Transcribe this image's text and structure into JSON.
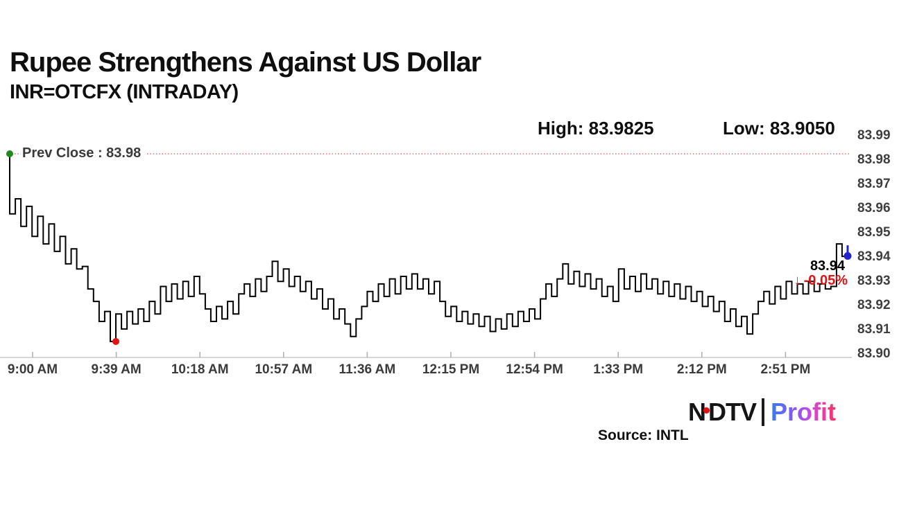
{
  "header": {
    "title": "Rupee Strengthens Against US Dollar",
    "subtitle": "INR=OTCFX (INTRADAY)",
    "high_label": "High: 83.9825",
    "low_label": "Low: 83.9050"
  },
  "annotations": {
    "prev_close_label": "Prev Close : 83.98",
    "last_price_label": "83.94",
    "change_arrow": "↓",
    "change_label": "-0.05%"
  },
  "footer": {
    "source": "Source: INTL",
    "logo_ndtv_n": "N",
    "logo_ndtv_dtv": "DTV",
    "logo_profit": "Profit"
  },
  "colors": {
    "line": "#000000",
    "prev_close_dotted": "#d97070",
    "open_marker_green": "#1e8a1e",
    "low_marker_red": "#e31212",
    "last_marker_blue": "#2424cf",
    "change_red": "#df1414",
    "axis_line": "#c9c9c9",
    "tick": "#adadad",
    "axis_text": "#3a3a3a"
  },
  "chart_data": {
    "type": "line",
    "title": "Rupee Strengthens Against US Dollar",
    "subtitle": "INR=OTCFX (INTRADAY)",
    "prev_close": 83.98,
    "high": 83.9825,
    "low": 83.905,
    "last": 83.94,
    "change_pct": -0.05,
    "ylim": [
      83.9,
      83.99
    ],
    "grid": false,
    "y_tick_labels": [
      "83.99",
      "83.98",
      "83.97",
      "83.96",
      "83.95",
      "83.94",
      "83.93",
      "83.92",
      "83.91",
      "83.90"
    ],
    "x_tick_labels": [
      "9:00 AM",
      "9:39 AM",
      "10:18 AM",
      "10:57 AM",
      "11:36 AM",
      "12:15 PM",
      "12:54 PM",
      "1:33 PM",
      "2:12 PM",
      "2:51 PM"
    ],
    "series": [
      {
        "name": "INR=OTCFX intraday price",
        "values": [
          83.98,
          83.956,
          83.962,
          83.951,
          83.959,
          83.947,
          83.955,
          83.944,
          83.952,
          83.941,
          83.947,
          83.936,
          83.942,
          83.934,
          83.935,
          83.926,
          83.921,
          83.913,
          83.917,
          83.905,
          83.916,
          83.91,
          83.917,
          83.912,
          83.918,
          83.913,
          83.921,
          83.916,
          83.927,
          83.921,
          83.928,
          83.922,
          83.929,
          83.923,
          83.931,
          83.924,
          83.918,
          83.913,
          83.919,
          83.914,
          83.921,
          83.916,
          83.924,
          83.928,
          83.923,
          83.93,
          83.925,
          83.931,
          83.937,
          83.929,
          83.934,
          83.927,
          83.931,
          83.925,
          83.929,
          83.922,
          83.926,
          83.918,
          83.922,
          83.914,
          83.918,
          83.912,
          83.907,
          83.914,
          83.919,
          83.925,
          83.921,
          83.928,
          83.923,
          83.93,
          83.924,
          83.931,
          83.926,
          83.932,
          83.926,
          83.93,
          83.924,
          83.929,
          83.921,
          83.915,
          83.919,
          83.913,
          83.917,
          83.912,
          83.916,
          83.911,
          83.915,
          83.909,
          83.914,
          83.91,
          83.916,
          83.911,
          83.917,
          83.913,
          83.918,
          83.914,
          83.922,
          83.928,
          83.923,
          83.93,
          83.936,
          83.928,
          83.933,
          83.927,
          83.932,
          83.926,
          83.93,
          83.923,
          83.927,
          83.921,
          83.934,
          83.926,
          83.931,
          83.925,
          83.932,
          83.926,
          83.93,
          83.924,
          83.929,
          83.923,
          83.928,
          83.922,
          83.927,
          83.921,
          83.925,
          83.919,
          83.923,
          83.917,
          83.921,
          83.913,
          83.918,
          83.911,
          83.915,
          83.908,
          83.916,
          83.921,
          83.925,
          83.92,
          83.927,
          83.922,
          83.929,
          83.924,
          83.928,
          83.924,
          83.929,
          83.925,
          83.928,
          83.926,
          83.927,
          83.944,
          83.939
        ]
      }
    ]
  }
}
